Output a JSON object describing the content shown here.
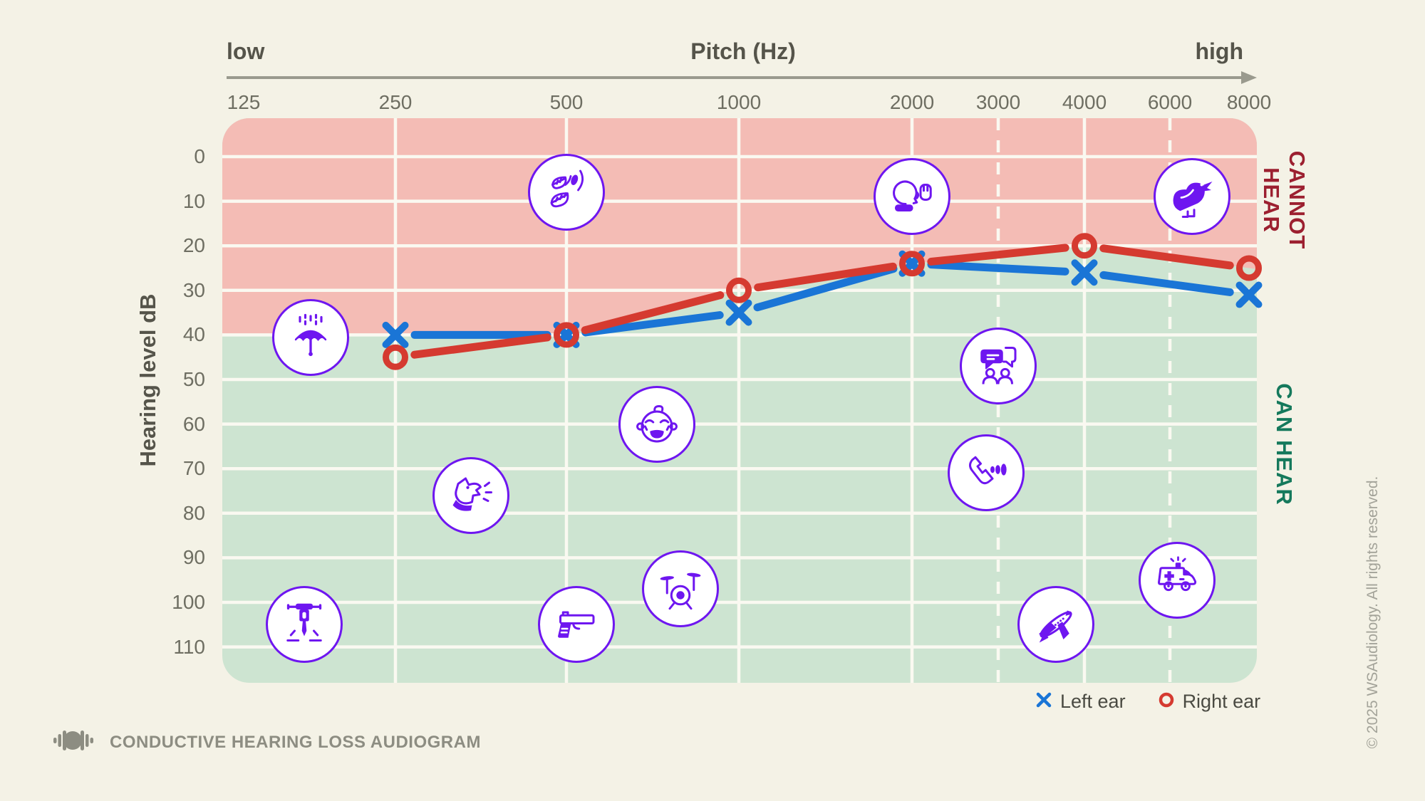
{
  "colors": {
    "page_bg": "#f4f2e6",
    "cannot_bg": "#f4bcb5",
    "can_bg": "#cde4d1",
    "grid": "#faf9f1",
    "left_ear": "#1a75d6",
    "right_ear": "#d53a30",
    "icon_purple": "#6e16f0",
    "cannot_text": "#9c2030",
    "can_text": "#15795c",
    "axis_gray": "#9a9a8e",
    "tick_text": "#6e6e62",
    "footer_text": "#8d8d82",
    "copyright_text": "#a3a399"
  },
  "header": {
    "left_label": "low",
    "axis_title": "Pitch (Hz)",
    "right_label": "high"
  },
  "x_axis": {
    "ticks": [
      125,
      250,
      500,
      1000,
      2000,
      3000,
      4000,
      6000,
      8000
    ]
  },
  "y_axis": {
    "title": "Hearing level dB",
    "ticks": [
      0,
      10,
      20,
      30,
      40,
      50,
      60,
      70,
      80,
      90,
      100,
      110
    ]
  },
  "regions": {
    "cannot_hear_label": "CANNOT HEAR",
    "can_hear_label": "CAN HEAR"
  },
  "legend": {
    "left": {
      "label": "Left ear",
      "marker": "x"
    },
    "right": {
      "label": "Right ear",
      "marker": "o"
    }
  },
  "footer": {
    "title": "CONDUCTIVE HEARING LOSS AUDIOGRAM"
  },
  "copyright": "© 2025 WSAudiology. All rights reserved.",
  "chart_data": {
    "type": "line",
    "title": "Conductive hearing loss audiogram",
    "xlabel": "Pitch (Hz)",
    "ylabel": "Hearing level dB",
    "x": [
      250,
      500,
      1000,
      2000,
      4000,
      8000
    ],
    "x_ticks": [
      125,
      250,
      500,
      1000,
      2000,
      3000,
      4000,
      6000,
      8000
    ],
    "y_ticks": [
      0,
      10,
      20,
      30,
      40,
      50,
      60,
      70,
      80,
      90,
      100,
      110
    ],
    "y_inverted": true,
    "ylim": [
      0,
      110
    ],
    "series": [
      {
        "name": "Left ear",
        "marker": "x",
        "color": "#1a75d6",
        "values": [
          40,
          40,
          35,
          24,
          26,
          31
        ]
      },
      {
        "name": "Right ear",
        "marker": "o",
        "color": "#d53a30",
        "values": [
          45,
          40,
          30,
          24,
          20,
          25
        ]
      }
    ],
    "regions": [
      {
        "label": "CANNOT HEAR",
        "color": "#f4bcb5",
        "area": "above best-ear threshold curve (flat at 40 dB left of 500 Hz)"
      },
      {
        "label": "CAN HEAR",
        "color": "#cde4d1",
        "area": "below best-ear threshold curve"
      }
    ],
    "grid": true,
    "solid_gridlines_hz": [
      250,
      500,
      1000,
      2000,
      4000
    ],
    "dashed_gridlines_hz": [
      3000,
      6000
    ],
    "legend_position": "bottom-right"
  },
  "sound_icons": [
    {
      "name": "rain-umbrella",
      "label": "rain",
      "hz": 170,
      "db": 40.5
    },
    {
      "name": "falling-leaves",
      "label": "rustling leaves",
      "hz": 500,
      "db": 8
    },
    {
      "name": "whisper",
      "label": "whispering",
      "hz": 2000,
      "db": 9
    },
    {
      "name": "bird",
      "label": "birdsong",
      "hz": 6500,
      "db": 9
    },
    {
      "name": "conversation",
      "label": "conversation",
      "hz": 3000,
      "db": 47
    },
    {
      "name": "crying-baby",
      "label": "baby crying",
      "hz": 720,
      "db": 60
    },
    {
      "name": "dog-barking",
      "label": "dog barking",
      "hz": 340,
      "db": 76
    },
    {
      "name": "phone",
      "label": "phone ringing",
      "hz": 2830,
      "db": 71
    },
    {
      "name": "drums",
      "label": "drums",
      "hz": 790,
      "db": 97
    },
    {
      "name": "jackhammer",
      "label": "jackhammer",
      "hz": 165,
      "db": 105
    },
    {
      "name": "gunshot",
      "label": "gunshot",
      "hz": 520,
      "db": 105
    },
    {
      "name": "airplane",
      "label": "airplane",
      "hz": 3640,
      "db": 105
    },
    {
      "name": "ambulance",
      "label": "ambulance siren",
      "hz": 6150,
      "db": 95
    }
  ]
}
